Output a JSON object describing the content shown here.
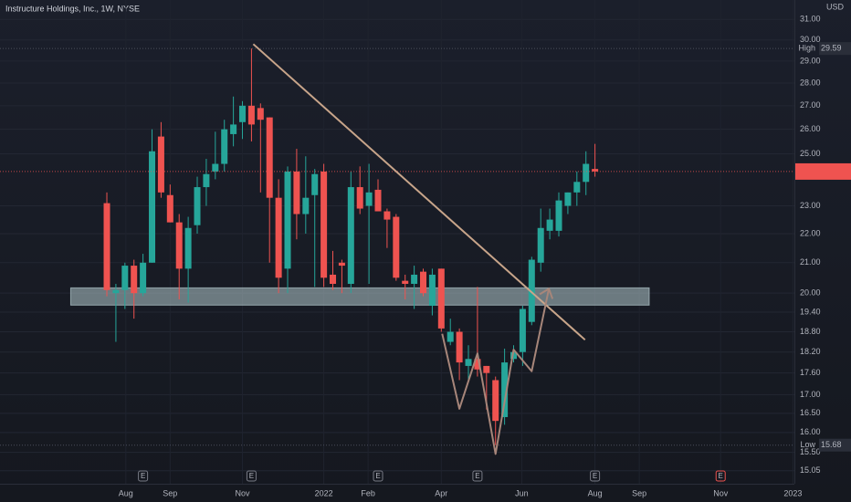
{
  "chart_data": {
    "type": "candlestick",
    "title": "Instructure Holdings, Inc., 1W, NYSE",
    "currency": "USD",
    "log_scale": true,
    "grid": true,
    "up_color": "#26a69a",
    "down_color": "#ef5350",
    "open": [
      23.1,
      20.0,
      20.1,
      20.9,
      20.0,
      21.0,
      25.7,
      23.4,
      22.4,
      20.8,
      22.3,
      23.7,
      24.3,
      24.6,
      25.8,
      26.3,
      27.0,
      26.9,
      26.5,
      23.3,
      20.8,
      24.3,
      22.7,
      23.4,
      24.3,
      20.6,
      21.0,
      20.3,
      23.7,
      23.0,
      23.6,
      22.8,
      22.6,
      20.4,
      20.3,
      20.7,
      19.6,
      20.8,
      18.5,
      18.8,
      17.8,
      18.0,
      17.8,
      17.4,
      16.4,
      18.0,
      18.2,
      19.1,
      21.0,
      22.1,
      22.1,
      23.0,
      23.5,
      23.9,
      24.4
    ],
    "high": [
      23.5,
      20.3,
      21.0,
      21.1,
      21.3,
      26.0,
      26.3,
      23.8,
      22.7,
      22.6,
      24.1,
      24.8,
      25.9,
      26.4,
      27.4,
      27.2,
      29.59,
      27.1,
      26.5,
      24.0,
      24.5,
      25.2,
      24.9,
      24.4,
      24.6,
      21.4,
      21.1,
      24.3,
      24.5,
      24.6,
      24.0,
      22.9,
      22.7,
      20.6,
      20.9,
      20.8,
      20.8,
      20.8,
      19.2,
      18.9,
      18.4,
      20.2,
      17.8,
      17.5,
      18.3,
      18.4,
      19.6,
      21.2,
      22.9,
      22.9,
      23.5,
      23.5,
      24.3,
      25.1,
      25.4
    ],
    "low": [
      19.9,
      18.5,
      19.5,
      19.2,
      19.9,
      21.0,
      23.3,
      22.4,
      19.8,
      19.7,
      22.0,
      23.0,
      24.0,
      24.3,
      25.3,
      25.6,
      25.5,
      23.5,
      21.0,
      20.0,
      20.0,
      21.8,
      22.0,
      20.2,
      20.2,
      20.1,
      20.0,
      20.0,
      22.7,
      20.3,
      22.8,
      21.5,
      20.4,
      19.8,
      19.5,
      19.9,
      19.3,
      18.8,
      18.4,
      17.4,
      17.4,
      17.5,
      16.6,
      15.68,
      16.2,
      17.9,
      17.8,
      19.0,
      20.7,
      21.8,
      21.9,
      22.7,
      23.0,
      23.4,
      24.1
    ],
    "close": [
      20.1,
      20.1,
      20.9,
      20.0,
      21.0,
      25.1,
      23.5,
      22.4,
      20.8,
      22.2,
      23.7,
      24.2,
      24.6,
      26.0,
      26.2,
      27.0,
      26.2,
      26.4,
      23.3,
      20.5,
      24.3,
      22.7,
      23.3,
      24.2,
      20.5,
      20.3,
      20.9,
      23.7,
      22.9,
      23.5,
      22.8,
      22.5,
      20.5,
      20.3,
      20.6,
      20.0,
      20.6,
      18.9,
      18.8,
      17.9,
      18.0,
      17.7,
      17.6,
      16.3,
      17.9,
      18.2,
      19.5,
      21.1,
      22.2,
      22.5,
      23.2,
      23.5,
      23.9,
      24.6,
      24.3
    ],
    "xlim": [
      -11.82,
      76.06
    ],
    "xticks": [
      {
        "value": 2.1,
        "label": "Aug"
      },
      {
        "value": 7,
        "label": "Sep"
      },
      {
        "value": 15,
        "label": "Nov"
      },
      {
        "value": 24,
        "label": "2022"
      },
      {
        "value": 28.9,
        "label": "Feb"
      },
      {
        "value": 37,
        "label": "Apr"
      },
      {
        "value": 45.9,
        "label": "Jun"
      },
      {
        "value": 54,
        "label": "Aug"
      },
      {
        "value": 58.9,
        "label": "Sep"
      },
      {
        "value": 67.9,
        "label": "Nov"
      },
      {
        "value": 75.9,
        "label": "2023"
      }
    ],
    "ylim": [
      14.74,
      31.98
    ],
    "yticks": [
      {
        "value": 31,
        "label": "31.00"
      },
      {
        "value": 30,
        "label": "30.00"
      },
      {
        "value": 29,
        "label": "29.00"
      },
      {
        "value": 28,
        "label": "28.00"
      },
      {
        "value": 27,
        "label": "27.00"
      },
      {
        "value": 26,
        "label": "26.00"
      },
      {
        "value": 25,
        "label": "25.00"
      },
      {
        "value": 23,
        "label": "23.00"
      },
      {
        "value": 22,
        "label": "22.00"
      },
      {
        "value": 21,
        "label": "21.00"
      },
      {
        "value": 20,
        "label": "20.00"
      },
      {
        "value": 19.4,
        "label": "19.40"
      },
      {
        "value": 18.8,
        "label": "18.80"
      },
      {
        "value": 18.2,
        "label": "18.20"
      },
      {
        "value": 17.6,
        "label": "17.60"
      },
      {
        "value": 17,
        "label": "17.00"
      },
      {
        "value": 16.5,
        "label": "16.50"
      },
      {
        "value": 16,
        "label": "16.00"
      },
      {
        "value": 15.5,
        "label": "15.50"
      },
      {
        "value": 15.05,
        "label": "15.05"
      }
    ],
    "high_marker": {
      "label": "High",
      "value": 29.59
    },
    "low_marker": {
      "label": "Low",
      "value": 15.68
    },
    "zone": {
      "x": [
        -4,
        60
      ],
      "y": [
        19.62,
        20.17
      ],
      "color": "#b2c8cc"
    },
    "trendline": {
      "x": [
        16.2,
        52.9
      ],
      "y": [
        29.8,
        18.56
      ],
      "color": "#c8a58a"
    },
    "pattern": {
      "x": [
        37.1,
        39,
        41,
        43,
        45,
        47,
        48.9
      ],
      "y": [
        18.74,
        16.62,
        18.16,
        15.46,
        18.27,
        17.65,
        20.14
      ],
      "color": "#a7867a"
    },
    "earnings": [
      {
        "x": 4,
        "label": "E",
        "color": "#787b86"
      },
      {
        "x": 16,
        "label": "E",
        "color": "#787b86"
      },
      {
        "x": 30,
        "label": "E",
        "color": "#787b86"
      },
      {
        "x": 41,
        "label": "E",
        "color": "#787b86"
      },
      {
        "x": 54,
        "label": "E",
        "color": "#787b86"
      },
      {
        "x": 67.9,
        "label": "E",
        "color": "#ef5350"
      }
    ]
  }
}
